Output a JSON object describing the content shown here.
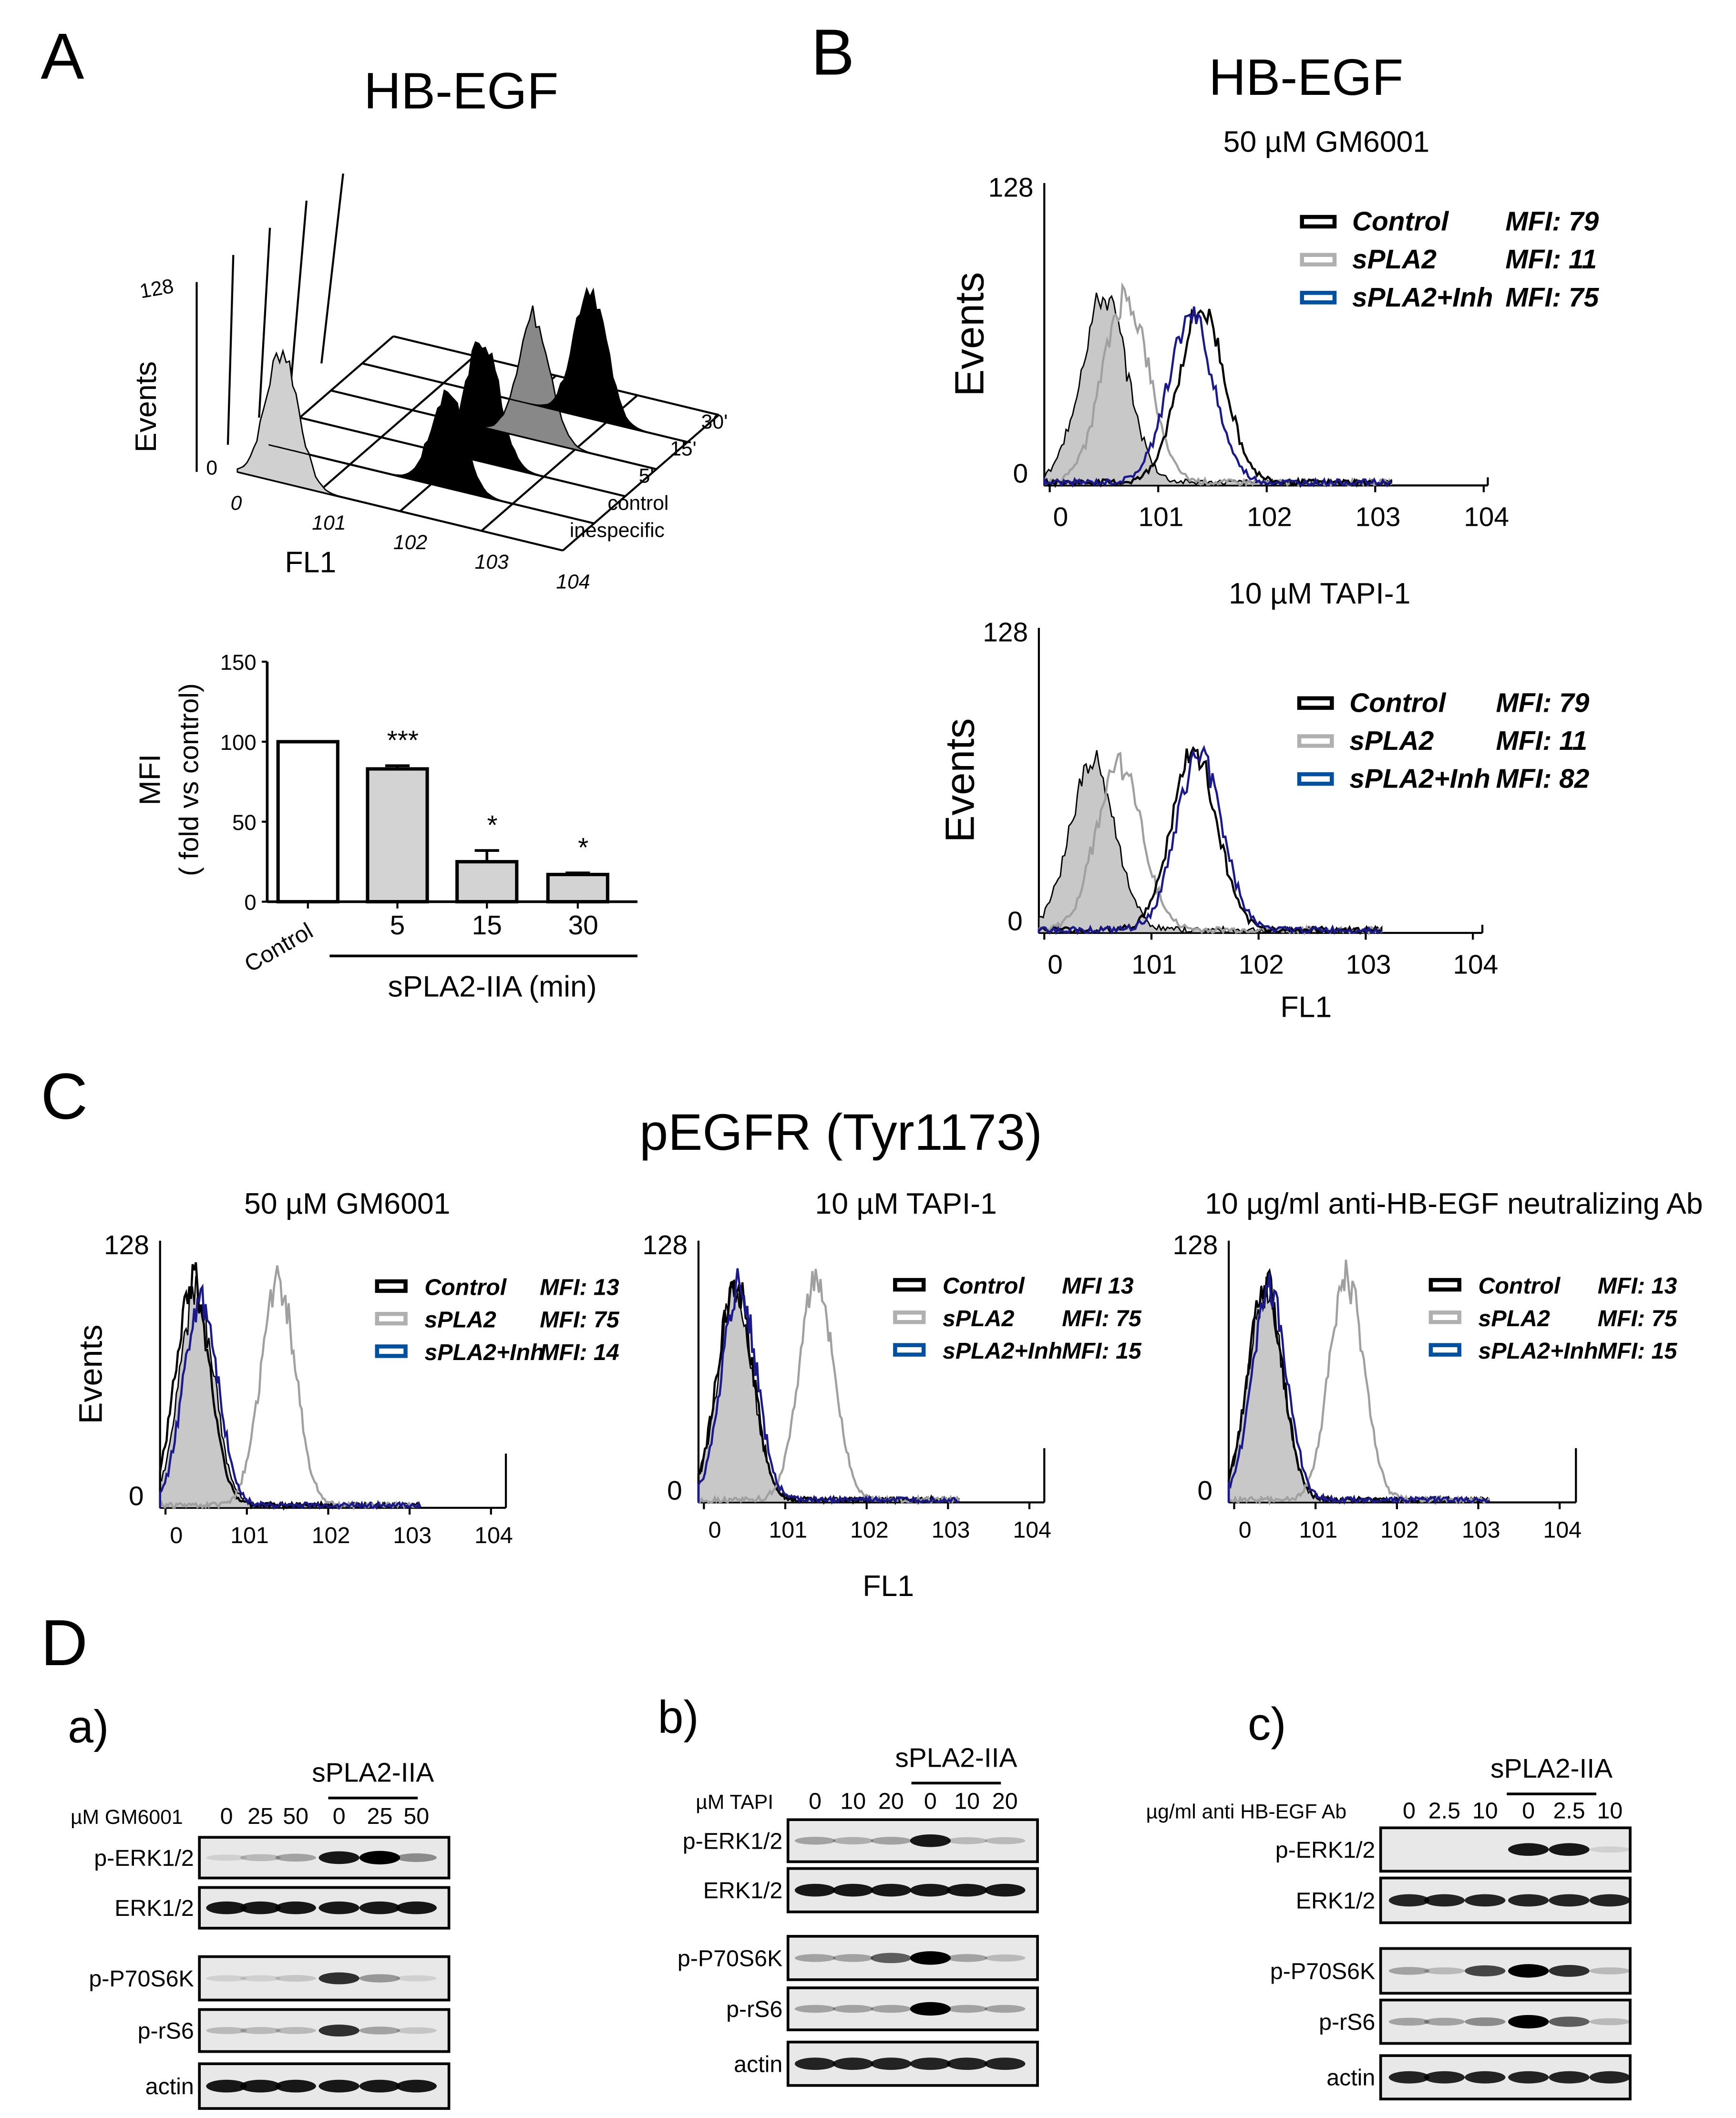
{
  "panels": {
    "A": {
      "label": "A",
      "title": "HB-EGF",
      "hist3d": {
        "ylabel": "Events",
        "ymax": "128",
        "ymin": "0",
        "xlabel": "FL1",
        "xticks": [
          "0",
          "101",
          "102",
          "103",
          "104"
        ],
        "rows": [
          "inespecific",
          "control",
          "5'",
          "15'",
          "30'"
        ]
      }
    },
    "B": {
      "label": "B",
      "title": "HB-EGF",
      "xlabel": "FL1"
    },
    "C": {
      "label": "C",
      "title": "pEGFR (Tyr1173)",
      "xlabel": "FL1"
    },
    "D": {
      "label": "D",
      "a": {
        "label": "a)",
        "treat": "sPLA2-IIA",
        "dose_label": "µM GM6001",
        "doses": [
          "0",
          "25",
          "50",
          "0",
          "25",
          "50"
        ],
        "rows": [
          {
            "name": "p-ERK1/2",
            "bands": [
              0.1,
              0.2,
              0.3,
              0.9,
              1.0,
              0.4
            ]
          },
          {
            "name": "ERK1/2",
            "bands": [
              0.9,
              0.9,
              0.9,
              0.9,
              0.9,
              0.9
            ]
          },
          {
            "name": "p-P70S6K",
            "bands": [
              0.1,
              0.1,
              0.15,
              0.8,
              0.35,
              0.1
            ]
          },
          {
            "name": "p-rS6",
            "bands": [
              0.2,
              0.2,
              0.2,
              0.8,
              0.3,
              0.15
            ]
          },
          {
            "name": "actin",
            "bands": [
              0.9,
              0.9,
              0.9,
              0.9,
              0.9,
              0.9
            ]
          }
        ]
      },
      "b": {
        "label": "b)",
        "treat": "sPLA2-IIA",
        "dose_label": "µM TAPI",
        "doses": [
          "0",
          "10",
          "20",
          "0",
          "10",
          "20"
        ],
        "rows": [
          {
            "name": "p-ERK1/2",
            "bands": [
              0.3,
              0.25,
              0.3,
              0.9,
              0.2,
              0.2
            ]
          },
          {
            "name": "ERK1/2",
            "bands": [
              0.9,
              0.9,
              0.9,
              0.9,
              0.9,
              0.9
            ]
          },
          {
            "name": "p-P70S6K",
            "bands": [
              0.3,
              0.3,
              0.6,
              1.0,
              0.3,
              0.2
            ]
          },
          {
            "name": "p-rS6",
            "bands": [
              0.3,
              0.3,
              0.3,
              1.0,
              0.3,
              0.3
            ]
          },
          {
            "name": "actin",
            "bands": [
              0.85,
              0.85,
              0.85,
              0.85,
              0.85,
              0.85
            ]
          }
        ]
      },
      "c": {
        "label": "c)",
        "treat": "sPLA2-IIA",
        "dose_label": "µg/ml anti HB-EGF Ab",
        "doses": [
          "0",
          "2.5",
          "10",
          "0",
          "2.5",
          "10"
        ],
        "rows": [
          {
            "name": "p-ERK1/2",
            "bands": [
              0.0,
              0.0,
              0.0,
              0.9,
              0.9,
              0.1
            ]
          },
          {
            "name": "ERK1/2",
            "bands": [
              0.85,
              0.85,
              0.85,
              0.85,
              0.85,
              0.85
            ]
          },
          {
            "name": "p-P70S6K",
            "bands": [
              0.3,
              0.2,
              0.7,
              1.0,
              0.8,
              0.2
            ]
          },
          {
            "name": "p-rS6",
            "bands": [
              0.3,
              0.3,
              0.4,
              1.0,
              0.6,
              0.2
            ]
          },
          {
            "name": "actin",
            "bands": [
              0.85,
              0.85,
              0.85,
              0.85,
              0.85,
              0.85
            ]
          }
        ]
      }
    }
  },
  "colors": {
    "control": "#000000",
    "spla2": "#a0a0a0",
    "inh": "#1a1a8c",
    "inh_legend": "#0050a0",
    "fill": "#c8c8c8",
    "bar_fill": "#d3d3d3"
  },
  "chart_data": [
    {
      "id": "A-bar",
      "type": "bar",
      "ylabel": "MFI",
      "ylabel2": "( fold vs control)",
      "ylim": [
        0,
        150
      ],
      "yticks": [
        "0",
        "50",
        "100",
        "150"
      ],
      "categories": [
        "Control",
        "5",
        "15",
        "30"
      ],
      "values": [
        100,
        83,
        25,
        17
      ],
      "errors": [
        0,
        2,
        7,
        1
      ],
      "significance": [
        "",
        "***",
        "*",
        "*"
      ],
      "group_label": "sPLA2-IIA (min)"
    },
    {
      "id": "B-top",
      "type": "line",
      "subtitle": "50 µM GM6001",
      "ylabel": "Events",
      "ylim": [
        "0",
        "128"
      ],
      "xticks": [
        "0",
        "101",
        "102",
        "103",
        "104"
      ],
      "legend": [
        {
          "name": "Control",
          "mfi": "MFI: 79"
        },
        {
          "name": "sPLA2",
          "mfi": "MFI: 11"
        },
        {
          "name": "sPLA2+Inh",
          "mfi": "MFI: 75"
        }
      ],
      "series": [
        {
          "name": "isotype",
          "peak_decade": 0.55,
          "height": 0.62,
          "filled": true
        },
        {
          "name": "sPLA2",
          "peak_decade": 0.75,
          "height": 0.62
        },
        {
          "name": "Control",
          "peak_decade": 1.45,
          "height": 0.58
        },
        {
          "name": "sPLA2+Inh",
          "peak_decade": 1.35,
          "height": 0.55
        }
      ]
    },
    {
      "id": "B-bottom",
      "type": "line",
      "subtitle": "10 µM TAPI-1",
      "ylabel": "Events",
      "ylim": [
        "0",
        "128"
      ],
      "xticks": [
        "0",
        "101",
        "102",
        "103",
        "104"
      ],
      "legend": [
        {
          "name": "Control",
          "mfi": "MFI: 79"
        },
        {
          "name": "sPLA2",
          "mfi": "MFI: 11"
        },
        {
          "name": "sPLA2+Inh",
          "mfi": "MFI: 82"
        }
      ],
      "series": [
        {
          "name": "isotype",
          "peak_decade": 0.5,
          "height": 0.55,
          "filled": true
        },
        {
          "name": "sPLA2",
          "peak_decade": 0.75,
          "height": 0.55
        },
        {
          "name": "Control",
          "peak_decade": 1.45,
          "height": 0.58
        },
        {
          "name": "sPLA2+Inh",
          "peak_decade": 1.5,
          "height": 0.58
        }
      ]
    },
    {
      "id": "C-1",
      "type": "line",
      "subtitle": "50 µM GM6001",
      "ylabel": "Events",
      "ylim": [
        "0",
        "128"
      ],
      "xticks": [
        "0",
        "101",
        "102",
        "103",
        "104"
      ],
      "legend": [
        {
          "name": "Control",
          "mfi": "MFI: 13"
        },
        {
          "name": "sPLA2",
          "mfi": "MFI: 75"
        },
        {
          "name": "sPLA2+Inh",
          "mfi": "MFI: 14"
        }
      ],
      "series": [
        {
          "name": "isotype",
          "peak_decade": 0.45,
          "height": 0.8,
          "filled": true
        },
        {
          "name": "Control",
          "peak_decade": 0.4,
          "height": 0.85
        },
        {
          "name": "sPLA2",
          "peak_decade": 1.45,
          "height": 0.85
        },
        {
          "name": "sPLA2+Inh",
          "peak_decade": 0.5,
          "height": 0.78
        }
      ]
    },
    {
      "id": "C-2",
      "type": "line",
      "subtitle": "10 µM TAPI-1",
      "ylim": [
        "0",
        "128"
      ],
      "xticks": [
        "0",
        "101",
        "102",
        "103",
        "104"
      ],
      "legend": [
        {
          "name": "Control",
          "mfi": "MFI 13"
        },
        {
          "name": "sPLA2",
          "mfi": "MFI: 75"
        },
        {
          "name": "sPLA2+Inh",
          "mfi": "MFI: 15"
        }
      ],
      "series": [
        {
          "name": "isotype",
          "peak_decade": 0.45,
          "height": 0.8,
          "filled": true
        },
        {
          "name": "Control",
          "peak_decade": 0.45,
          "height": 0.85
        },
        {
          "name": "sPLA2",
          "peak_decade": 1.45,
          "height": 0.85
        },
        {
          "name": "sPLA2+Inh",
          "peak_decade": 0.5,
          "height": 0.82
        }
      ]
    },
    {
      "id": "C-3",
      "type": "line",
      "subtitle": "10 µg/ml anti-HB-EGF neutralizing Ab",
      "ylim": [
        "0",
        "128"
      ],
      "xticks": [
        "0",
        "101",
        "102",
        "103",
        "104"
      ],
      "legend": [
        {
          "name": "Control",
          "mfi": "MFI: 13"
        },
        {
          "name": "sPLA2",
          "mfi": "MFI: 75"
        },
        {
          "name": "sPLA2+Inh",
          "mfi": "MFI: 15"
        }
      ],
      "series": [
        {
          "name": "isotype",
          "peak_decade": 0.45,
          "height": 0.8,
          "filled": true
        },
        {
          "name": "Control",
          "peak_decade": 0.45,
          "height": 0.85
        },
        {
          "name": "sPLA2",
          "peak_decade": 1.45,
          "height": 0.85
        },
        {
          "name": "sPLA2+Inh",
          "peak_decade": 0.5,
          "height": 0.82
        }
      ]
    }
  ]
}
